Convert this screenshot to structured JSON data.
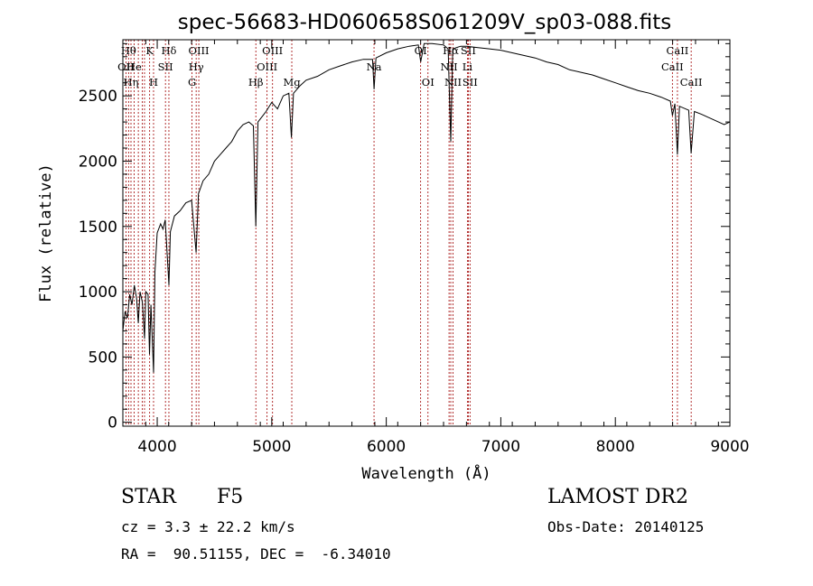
{
  "chart_data": {
    "type": "line",
    "title": "spec-56683-HD060658S061209V_sp03-088.fits",
    "xlabel": "Wavelength (Å)",
    "ylabel": "Flux (relative)",
    "xlim": [
      3700,
      9000
    ],
    "ylim": [
      -30,
      2930
    ],
    "xticks": [
      4000,
      5000,
      6000,
      7000,
      8000,
      9000
    ],
    "yticks": [
      0,
      500,
      1000,
      1500,
      2000,
      2500
    ],
    "series": [
      {
        "values": [
          [
            3700,
            700
          ],
          [
            3720,
            850
          ],
          [
            3740,
            800
          ],
          [
            3760,
            980
          ],
          [
            3780,
            900
          ],
          [
            3800,
            1050
          ],
          [
            3820,
            950
          ],
          [
            3835,
            760
          ],
          [
            3850,
            1000
          ],
          [
            3870,
            920
          ],
          [
            3889,
            640
          ],
          [
            3900,
            1000
          ],
          [
            3920,
            980
          ],
          [
            3933,
            520
          ],
          [
            3945,
            900
          ],
          [
            3968,
            380
          ],
          [
            3980,
            1150
          ],
          [
            4000,
            1450
          ],
          [
            4030,
            1520
          ],
          [
            4050,
            1480
          ],
          [
            4070,
            1550
          ],
          [
            4102,
            1050
          ],
          [
            4115,
            1460
          ],
          [
            4150,
            1580
          ],
          [
            4200,
            1620
          ],
          [
            4250,
            1680
          ],
          [
            4300,
            1700
          ],
          [
            4320,
            1500
          ],
          [
            4340,
            1300
          ],
          [
            4360,
            1750
          ],
          [
            4400,
            1850
          ],
          [
            4450,
            1900
          ],
          [
            4500,
            2000
          ],
          [
            4550,
            2050
          ],
          [
            4600,
            2100
          ],
          [
            4650,
            2150
          ],
          [
            4700,
            2230
          ],
          [
            4750,
            2280
          ],
          [
            4800,
            2300
          ],
          [
            4840,
            2270
          ],
          [
            4861,
            1500
          ],
          [
            4880,
            2300
          ],
          [
            4950,
            2380
          ],
          [
            5000,
            2450
          ],
          [
            5050,
            2400
          ],
          [
            5100,
            2500
          ],
          [
            5150,
            2520
          ],
          [
            5172,
            2180
          ],
          [
            5190,
            2520
          ],
          [
            5250,
            2580
          ],
          [
            5300,
            2620
          ],
          [
            5400,
            2650
          ],
          [
            5500,
            2700
          ],
          [
            5600,
            2730
          ],
          [
            5700,
            2760
          ],
          [
            5800,
            2780
          ],
          [
            5880,
            2780
          ],
          [
            5893,
            2550
          ],
          [
            5910,
            2790
          ],
          [
            6000,
            2830
          ],
          [
            6100,
            2860
          ],
          [
            6200,
            2880
          ],
          [
            6280,
            2890
          ],
          [
            6300,
            2760
          ],
          [
            6330,
            2900
          ],
          [
            6400,
            2900
          ],
          [
            6500,
            2890
          ],
          [
            6540,
            2860
          ],
          [
            6563,
            2150
          ],
          [
            6580,
            2860
          ],
          [
            6650,
            2880
          ],
          [
            6700,
            2880
          ],
          [
            6800,
            2870
          ],
          [
            6900,
            2860
          ],
          [
            7000,
            2850
          ],
          [
            7100,
            2830
          ],
          [
            7200,
            2810
          ],
          [
            7300,
            2790
          ],
          [
            7400,
            2760
          ],
          [
            7500,
            2740
          ],
          [
            7600,
            2700
          ],
          [
            7700,
            2680
          ],
          [
            7800,
            2660
          ],
          [
            7900,
            2630
          ],
          [
            8000,
            2600
          ],
          [
            8100,
            2570
          ],
          [
            8200,
            2540
          ],
          [
            8300,
            2520
          ],
          [
            8400,
            2490
          ],
          [
            8480,
            2460
          ],
          [
            8498,
            2350
          ],
          [
            8520,
            2440
          ],
          [
            8542,
            2050
          ],
          [
            8560,
            2420
          ],
          [
            8640,
            2390
          ],
          [
            8662,
            2060
          ],
          [
            8690,
            2380
          ],
          [
            8750,
            2360
          ],
          [
            8800,
            2340
          ],
          [
            8850,
            2320
          ],
          [
            8900,
            2300
          ],
          [
            8950,
            2280
          ],
          [
            9000,
            2300
          ]
        ]
      }
    ],
    "lines": [
      {
        "w": 3727,
        "label": "OII",
        "row": 1
      },
      {
        "w": 3750,
        "label": "Hθ",
        "row": 0
      },
      {
        "w": 3771,
        "label": "Hη",
        "row": 2
      },
      {
        "w": 3798,
        "label": "He",
        "row": 1
      },
      {
        "w": 3835,
        "label": "",
        "row": 2
      },
      {
        "w": 3869,
        "label": "",
        "row": 1
      },
      {
        "w": 3889,
        "label": "",
        "row": 2
      },
      {
        "w": 3934,
        "label": "K",
        "row": 0
      },
      {
        "w": 3968,
        "label": "H",
        "row": 2
      },
      {
        "w": 4072,
        "label": "SII",
        "row": 1
      },
      {
        "w": 4102,
        "label": "Hδ",
        "row": 0
      },
      {
        "w": 4304,
        "label": "G",
        "row": 2
      },
      {
        "w": 4340,
        "label": "Hγ",
        "row": 1
      },
      {
        "w": 4363,
        "label": "OIII",
        "row": 0
      },
      {
        "w": 4861,
        "label": "Hβ",
        "row": 2
      },
      {
        "w": 4959,
        "label": "OIII",
        "row": 1
      },
      {
        "w": 5007,
        "label": "OIII",
        "row": 0
      },
      {
        "w": 5175,
        "label": "Mg",
        "row": 2
      },
      {
        "w": 5893,
        "label": "Na",
        "row": 1
      },
      {
        "w": 6300,
        "label": "OI",
        "row": 0
      },
      {
        "w": 6364,
        "label": "OI",
        "row": 2
      },
      {
        "w": 6548,
        "label": "NII",
        "row": 1
      },
      {
        "w": 6563,
        "label": "Hα",
        "row": 0
      },
      {
        "w": 6583,
        "label": "NII",
        "row": 2
      },
      {
        "w": 6708,
        "label": "Li",
        "row": 1
      },
      {
        "w": 6716,
        "label": "SII",
        "row": 0
      },
      {
        "w": 6731,
        "label": "SII",
        "row": 2
      },
      {
        "w": 8498,
        "label": "CaII",
        "row": 1
      },
      {
        "w": 8542,
        "label": "CaII",
        "row": 0
      },
      {
        "w": 8662,
        "label": "CaII",
        "row": 2
      }
    ]
  },
  "info": {
    "class_label": "STAR",
    "subclass": "F5",
    "cz": "cz = 3.3 ± 22.2 km/s",
    "coords": "RA =  90.51155, DEC =  -6.34010",
    "survey": "LAMOST DR2",
    "obs_date": "Obs-Date: 20140125"
  }
}
